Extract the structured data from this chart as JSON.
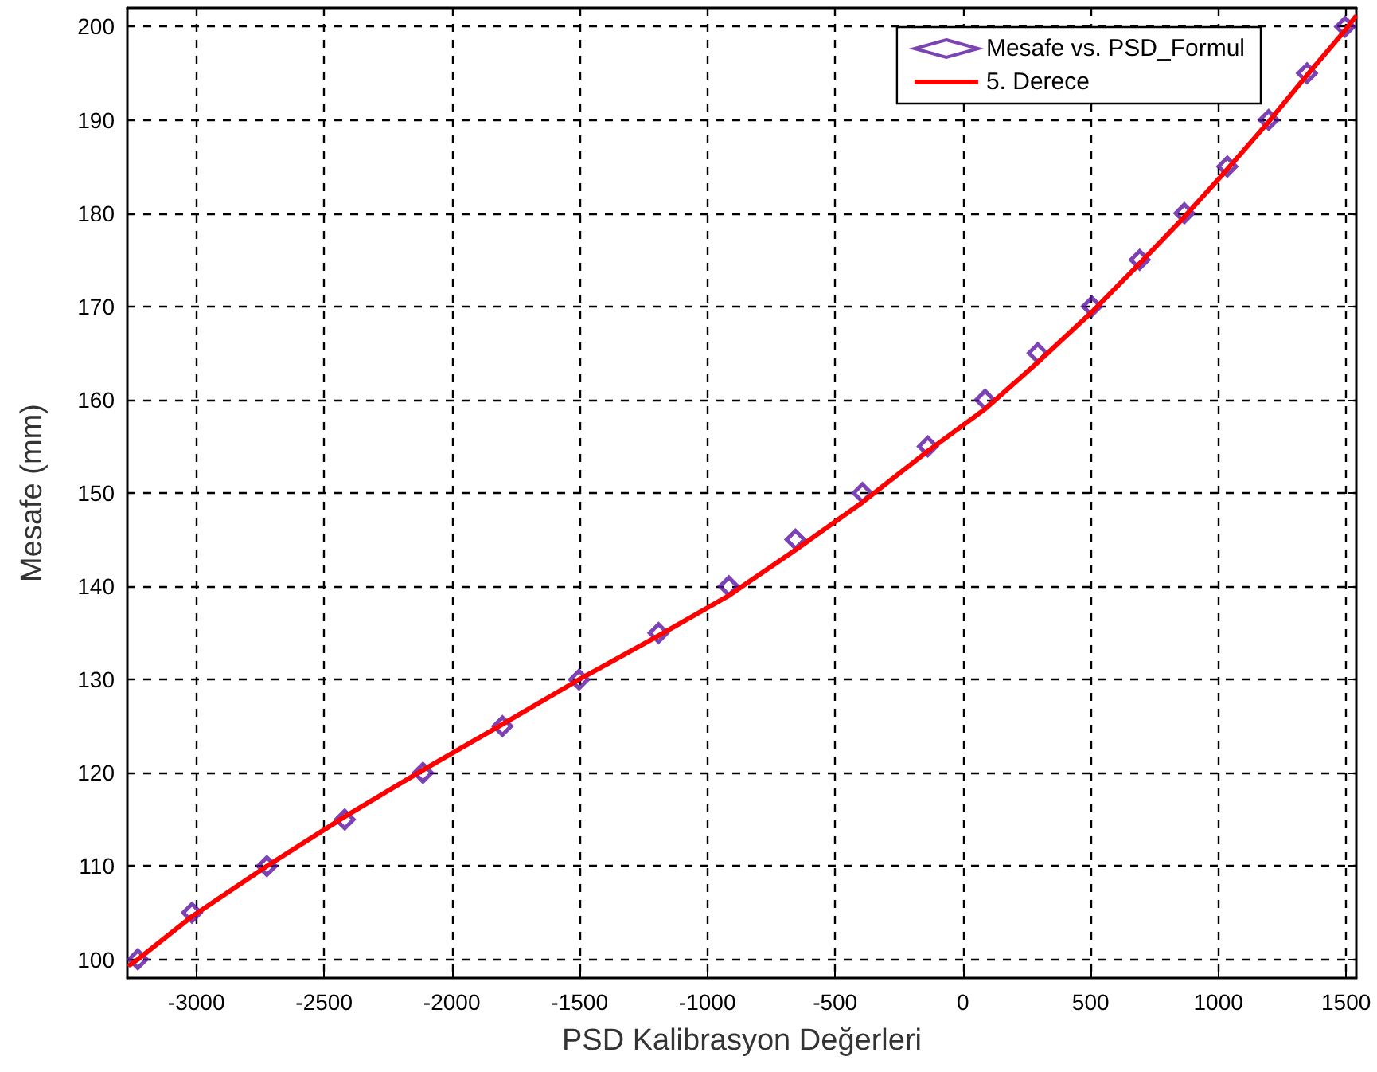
{
  "chart_data": {
    "type": "scatter",
    "xlabel": "PSD Kalibrasyon Değerleri",
    "ylabel": "Mesafe (mm)",
    "xlim": [
      -3270,
      1540
    ],
    "ylim": [
      98,
      202
    ],
    "xticks": [
      -3000,
      -2500,
      -2000,
      -1500,
      -1000,
      -500,
      0,
      500,
      1000,
      1500
    ],
    "yticks": [
      100,
      110,
      120,
      130,
      140,
      150,
      160,
      170,
      180,
      190,
      200
    ],
    "grid": true,
    "legend": "top right",
    "series": [
      {
        "name": "Mesafe vs. PSD_Formul",
        "marker": "diamond",
        "color": "#5a14a0",
        "x": [
          -3229,
          -3017,
          -2724,
          -2419,
          -2113,
          -1802,
          -1502,
          -1191,
          -916,
          -655,
          -393,
          -137,
          87,
          293,
          505,
          692,
          867,
          1035,
          1197,
          1347,
          1496
        ],
        "values": [
          100,
          105,
          110,
          115,
          120,
          125,
          130,
          135,
          140,
          145,
          150,
          155,
          160,
          165,
          170,
          175,
          180,
          185,
          190,
          195,
          200
        ]
      },
      {
        "name": "5. Derece",
        "type": "line",
        "marker": "none",
        "line_style": "solid",
        "color": "#ff0000",
        "x": [
          -3260,
          -3229,
          -3017,
          -2724,
          -2419,
          -2113,
          -1802,
          -1502,
          -1191,
          -916,
          -655,
          -393,
          -137,
          87,
          293,
          505,
          692,
          867,
          1035,
          1197,
          1347,
          1496,
          1535
        ],
        "values": [
          99.4,
          100,
          104.6,
          110,
          115.3,
          120.3,
          125.2,
          130,
          134.7,
          139,
          143.9,
          149,
          154.5,
          159,
          164,
          169.4,
          174.6,
          179.6,
          184.7,
          189.8,
          194.8,
          199.6,
          201
        ]
      }
    ]
  }
}
